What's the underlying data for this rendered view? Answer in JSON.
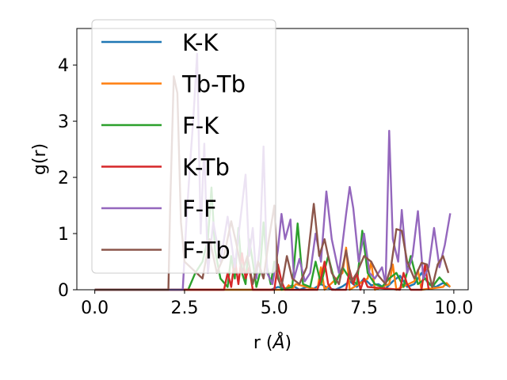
{
  "chart_data": {
    "type": "line",
    "xlabel_prefix": "r (",
    "xlabel_unit": "Å",
    "xlabel_suffix": ")",
    "ylabel": "g(r)",
    "xlim": [
      -0.5,
      10.4
    ],
    "ylim": [
      0,
      4.65
    ],
    "xticks": [
      0.0,
      2.5,
      5.0,
      7.5,
      10.0
    ],
    "xtick_labels": [
      "0.0",
      "2.5",
      "5.0",
      "7.5",
      "10.0"
    ],
    "yticks": [
      0,
      1,
      2,
      3,
      4
    ],
    "ytick_labels": [
      "0",
      "1",
      "2",
      "3",
      "4"
    ],
    "grid": false,
    "legend_position": "top-left",
    "series": [
      {
        "name": "K-K",
        "color": "#1f77b4",
        "x": [
          0,
          4.9,
          5.1,
          5.3,
          5.5,
          5.7,
          5.9,
          6.1,
          6.3,
          6.5,
          6.7,
          6.9,
          7.1,
          7.3,
          7.5,
          7.7,
          7.9,
          8.1,
          8.3,
          8.5,
          8.7,
          8.9,
          9.1,
          9.3,
          9.5,
          9.7,
          9.9
        ],
        "y": [
          0,
          0,
          0.05,
          0.02,
          0.08,
          0,
          0.05,
          0.02,
          0.1,
          0.03,
          0,
          0.06,
          0.15,
          0.05,
          0.2,
          0.08,
          0.1,
          0.02,
          0.15,
          0.25,
          0.05,
          0.1,
          0.3,
          0.1,
          0.05,
          0.12,
          0.05
        ]
      },
      {
        "name": "Tb-Tb",
        "color": "#ff7f0e",
        "x": [
          0,
          5.3,
          5.4,
          5.5,
          5.6,
          6.2,
          6.3,
          6.4,
          6.9,
          7.0,
          7.1,
          7.6,
          7.7,
          7.8,
          8.2,
          8.3,
          8.4,
          8.9,
          9.0,
          9.1,
          9.7,
          9.8,
          9.9
        ],
        "y": [
          0,
          0,
          0.08,
          0.02,
          0.1,
          0,
          0.4,
          0,
          0.3,
          0.75,
          0,
          0.2,
          0.5,
          0,
          0.1,
          0.45,
          0,
          0.15,
          0.35,
          0,
          0.05,
          0.12,
          0.05
        ]
      },
      {
        "name": "F-K",
        "color": "#2ca02c",
        "x": [
          0,
          2.6,
          2.8,
          3.0,
          3.15,
          3.25,
          3.35,
          3.5,
          3.7,
          3.8,
          3.9,
          4.0,
          4.1,
          4.2,
          4.3,
          4.4,
          4.5,
          4.6,
          4.7,
          4.8,
          4.9,
          5.0,
          5.2,
          5.5,
          5.65,
          5.8,
          6.0,
          6.15,
          6.3,
          6.5,
          6.7,
          6.9,
          7.1,
          7.3,
          7.45,
          7.6,
          7.8,
          8.0,
          8.2,
          8.4,
          8.6,
          8.8,
          9.0,
          9.2,
          9.4,
          9.6,
          9.8
        ],
        "y": [
          0,
          0,
          0.3,
          0.5,
          0.9,
          1.82,
          0.7,
          0.2,
          0.05,
          0.6,
          0.2,
          1.1,
          0.3,
          0.1,
          0.9,
          0.5,
          0.05,
          0.3,
          1.2,
          0.4,
          0.1,
          0.5,
          0,
          0.05,
          1.18,
          0.1,
          0.05,
          0.5,
          0.1,
          0.6,
          0.1,
          0.4,
          0.2,
          0.1,
          1.05,
          0.3,
          0.1,
          0.05,
          0.2,
          0.3,
          0.05,
          0.6,
          0.1,
          0.2,
          0.05,
          0.22,
          0.08
        ]
      },
      {
        "name": "K-Tb",
        "color": "#d62728",
        "x": [
          0,
          3.6,
          3.7,
          3.8,
          3.9,
          4.0,
          4.1,
          4.2,
          4.3,
          4.4,
          5.0,
          5.1,
          5.2,
          5.3,
          6.2,
          6.3,
          6.4,
          6.5,
          6.6,
          7.0,
          7.1,
          7.2,
          7.3,
          7.4,
          7.5,
          7.6,
          8.5,
          8.6,
          8.7,
          8.8,
          9.1,
          9.2,
          9.3
        ],
        "y": [
          0,
          0,
          0.3,
          0.05,
          0.55,
          0.1,
          0.65,
          0.2,
          0.4,
          0,
          0,
          0.45,
          0.15,
          0,
          0,
          0.2,
          0.5,
          0.1,
          0,
          0,
          0.35,
          0.1,
          0.3,
          0,
          0.2,
          0.05,
          0,
          0.3,
          0.1,
          0,
          0,
          0.45,
          0
        ]
      },
      {
        "name": "F-F",
        "color": "#9467bd",
        "x": [
          0,
          2.45,
          2.55,
          2.65,
          2.75,
          2.85,
          2.95,
          3.05,
          3.15,
          3.3,
          3.5,
          3.7,
          3.9,
          4.1,
          4.2,
          4.3,
          4.4,
          4.5,
          4.6,
          4.7,
          4.8,
          4.95,
          5.1,
          5.2,
          5.3,
          5.45,
          5.55,
          5.7,
          5.85,
          6.0,
          6.15,
          6.3,
          6.45,
          6.6,
          6.8,
          7.0,
          7.1,
          7.2,
          7.35,
          7.5,
          7.65,
          7.8,
          8.0,
          8.1,
          8.2,
          8.3,
          8.45,
          8.55,
          8.7,
          8.85,
          9.0,
          9.15,
          9.3,
          9.45,
          9.6,
          9.75,
          9.9
        ],
        "y": [
          0,
          0,
          1.2,
          2.2,
          3.1,
          4.2,
          1.0,
          2.6,
          0.3,
          1.2,
          0.5,
          1.3,
          0.4,
          1.5,
          2.05,
          0.6,
          1.1,
          0.2,
          0.8,
          2.55,
          0.3,
          0.1,
          0.7,
          1.35,
          0.9,
          1.25,
          0.2,
          0.55,
          0.15,
          0.3,
          1.0,
          0.5,
          1.75,
          0.9,
          0.3,
          1.35,
          1.83,
          1.45,
          0.5,
          1.0,
          0.3,
          0.2,
          0.4,
          0.1,
          2.83,
          0.9,
          0.5,
          1.42,
          0.3,
          0.6,
          1.4,
          0.2,
          0.4,
          1.1,
          0.4,
          0.8,
          1.36
        ]
      },
      {
        "name": "F-Tb",
        "color": "#8c564b",
        "x": [
          0,
          2.05,
          2.1,
          2.2,
          2.3,
          2.4,
          2.5,
          3.0,
          3.2,
          3.4,
          3.6,
          3.8,
          3.95,
          4.1,
          4.25,
          4.4,
          4.55,
          4.7,
          4.85,
          5.0,
          5.1,
          5.2,
          5.35,
          5.5,
          5.7,
          5.9,
          6.1,
          6.25,
          6.4,
          6.6,
          6.8,
          7.0,
          7.15,
          7.3,
          7.5,
          7.7,
          7.9,
          8.1,
          8.25,
          8.4,
          8.55,
          8.7,
          8.9,
          9.1,
          9.25,
          9.4,
          9.55,
          9.7,
          9.85
        ],
        "y": [
          0,
          0,
          1.5,
          3.8,
          3.5,
          1.2,
          0.5,
          0.2,
          0.9,
          0.3,
          0.6,
          1.22,
          0.8,
          0.3,
          0.6,
          0.1,
          0.5,
          0.2,
          0.9,
          1.5,
          0.2,
          0.05,
          0.6,
          0.2,
          0.1,
          0.4,
          1.53,
          0.6,
          0.9,
          0.3,
          0.1,
          0.7,
          0.15,
          0.3,
          0.6,
          0.5,
          0.25,
          0.1,
          0.4,
          1.08,
          1.05,
          0.5,
          0.2,
          0.48,
          0.45,
          0.05,
          0.45,
          0.6,
          0.3
        ]
      }
    ]
  }
}
